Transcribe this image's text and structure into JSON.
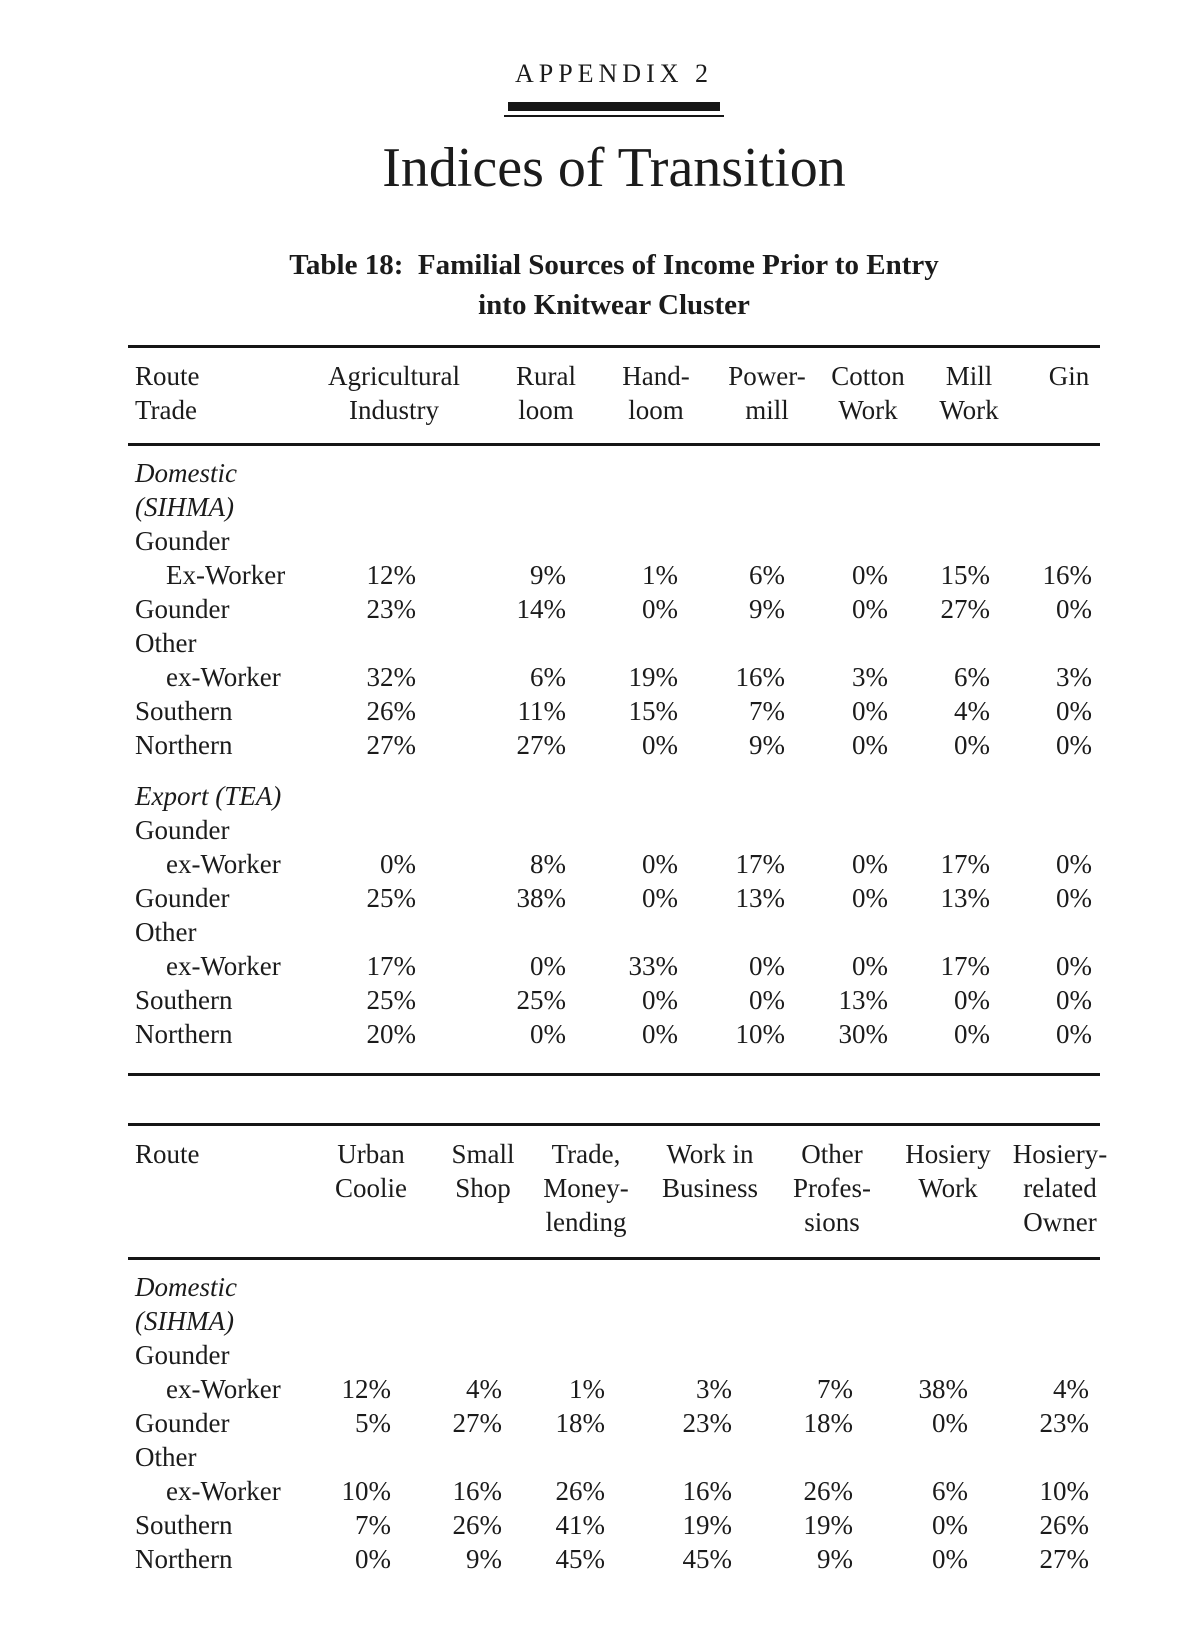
{
  "colors": {
    "ink": "#1b1b1b",
    "background": "#ffffff"
  },
  "page": {
    "appendix_label": "APPENDIX 2",
    "title": "Indices of Transition",
    "caption": {
      "line1": "Table 18:  Familial Sources of Income Prior to Entry",
      "line2": "into Knitwear Cluster"
    }
  },
  "table1": {
    "header": {
      "route_line1": "Route",
      "route_line2": "Trade",
      "cols": [
        {
          "lines": [
            "Agricultural",
            "Industry"
          ]
        },
        {
          "lines": [
            "Rural",
            "loom"
          ]
        },
        {
          "lines": [
            "Hand-",
            "loom"
          ]
        },
        {
          "lines": [
            "Power-",
            "mill"
          ]
        },
        {
          "lines": [
            "Cotton",
            "Work"
          ]
        },
        {
          "lines": [
            "Mill",
            "Work"
          ]
        },
        {
          "lines": [
            "Gin"
          ]
        }
      ]
    },
    "rows": [
      {
        "label": "Domestic",
        "italic": true,
        "values": []
      },
      {
        "label": "(SIHMA)",
        "italic": true,
        "values": []
      },
      {
        "label": "Gounder",
        "values": []
      },
      {
        "label": "Ex-Worker",
        "indent": true,
        "values": [
          "12%",
          "9%",
          "1%",
          "6%",
          "0%",
          "15%",
          "16%"
        ]
      },
      {
        "label": "Gounder",
        "values": [
          "23%",
          "14%",
          "0%",
          "9%",
          "0%",
          "27%",
          "0%"
        ]
      },
      {
        "label": "Other",
        "values": []
      },
      {
        "label": "ex-Worker",
        "indent": true,
        "values": [
          "32%",
          "6%",
          "19%",
          "16%",
          "3%",
          "6%",
          "3%"
        ]
      },
      {
        "label": "Southern",
        "values": [
          "26%",
          "11%",
          "15%",
          "7%",
          "0%",
          "4%",
          "0%"
        ]
      },
      {
        "label": "Northern",
        "values": [
          "27%",
          "27%",
          "0%",
          "9%",
          "0%",
          "0%",
          "0%"
        ]
      },
      {
        "label": "Export (TEA)",
        "italic": true,
        "gap": true,
        "values": []
      },
      {
        "label": "Gounder",
        "values": []
      },
      {
        "label": "ex-Worker",
        "indent": true,
        "values": [
          "0%",
          "8%",
          "0%",
          "17%",
          "0%",
          "17%",
          "0%"
        ]
      },
      {
        "label": "Gounder",
        "values": [
          "25%",
          "38%",
          "0%",
          "13%",
          "0%",
          "13%",
          "0%"
        ]
      },
      {
        "label": "Other",
        "values": []
      },
      {
        "label": "ex-Worker",
        "indent": true,
        "values": [
          "17%",
          "0%",
          "33%",
          "0%",
          "0%",
          "17%",
          "0%"
        ]
      },
      {
        "label": "Southern",
        "values": [
          "25%",
          "25%",
          "0%",
          "0%",
          "13%",
          "0%",
          "0%"
        ]
      },
      {
        "label": "Northern",
        "values": [
          "20%",
          "0%",
          "0%",
          "10%",
          "30%",
          "0%",
          "0%"
        ]
      }
    ]
  },
  "table2": {
    "header": {
      "route": "Route",
      "cols": [
        {
          "lines": [
            "Urban",
            "Coolie"
          ]
        },
        {
          "lines": [
            "Small",
            "Shop"
          ]
        },
        {
          "lines": [
            "Trade,",
            "Money-",
            "lending"
          ]
        },
        {
          "lines": [
            "Work in",
            "Business"
          ]
        },
        {
          "lines": [
            "Other",
            "Profes-",
            "sions"
          ]
        },
        {
          "lines": [
            "Hosiery",
            "Work"
          ]
        },
        {
          "lines": [
            "Hosiery-",
            "related",
            "Owner"
          ]
        }
      ]
    },
    "rows": [
      {
        "label": "Domestic",
        "italic": true,
        "values": []
      },
      {
        "label": "(SIHMA)",
        "italic": true,
        "values": []
      },
      {
        "label": "Gounder",
        "values": []
      },
      {
        "label": "ex-Worker",
        "indent": true,
        "values": [
          "12%",
          "4%",
          "1%",
          "3%",
          "7%",
          "38%",
          "4%"
        ]
      },
      {
        "label": "Gounder",
        "values": [
          "5%",
          "27%",
          "18%",
          "23%",
          "18%",
          "0%",
          "23%"
        ]
      },
      {
        "label": "Other",
        "values": []
      },
      {
        "label": "ex-Worker",
        "indent": true,
        "values": [
          "10%",
          "16%",
          "26%",
          "16%",
          "26%",
          "6%",
          "10%"
        ]
      },
      {
        "label": "Southern",
        "values": [
          "7%",
          "26%",
          "41%",
          "19%",
          "19%",
          "0%",
          "26%"
        ]
      },
      {
        "label": "Northern",
        "values": [
          "0%",
          "9%",
          "45%",
          "45%",
          "9%",
          "0%",
          "27%"
        ]
      }
    ]
  }
}
